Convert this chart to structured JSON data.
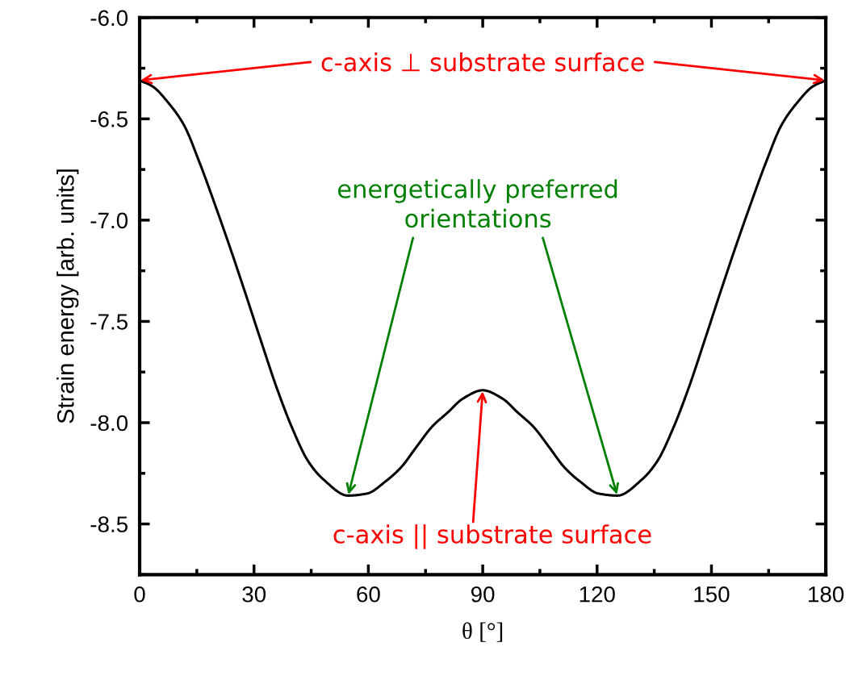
{
  "chart_data": {
    "type": "line",
    "xlabel": "θ [°]",
    "ylabel": "Strain energy [arb. units]",
    "x": [
      0,
      3.4,
      7.5,
      11.6,
      15.7,
      19.7,
      23.8,
      27.9,
      31.9,
      36.0,
      40.1,
      44.2,
      48.2,
      54.7,
      59.6,
      64.5,
      68.6,
      72.6,
      76.7,
      80.8,
      84.9,
      90,
      95.1,
      99.2,
      103.3,
      107.4,
      111.4,
      115.5,
      120.4,
      125.3,
      131.8,
      135.8,
      139.9,
      144.0,
      148.1,
      152.1,
      156.2,
      160.3,
      164.3,
      168.4,
      172.5,
      176.6,
      180
    ],
    "series": [
      {
        "color": "#000000",
        "values": [
          -6.31,
          -6.34,
          -6.42,
          -6.53,
          -6.715,
          -6.92,
          -7.14,
          -7.37,
          -7.6,
          -7.83,
          -8.03,
          -8.19,
          -8.28,
          -8.36,
          -8.35,
          -8.29,
          -8.22,
          -8.12,
          -8.02,
          -7.95,
          -7.88,
          -7.84,
          -7.88,
          -7.95,
          -8.02,
          -8.12,
          -8.22,
          -8.29,
          -8.35,
          -8.36,
          -8.28,
          -8.19,
          -8.03,
          -7.83,
          -7.6,
          -7.37,
          -7.14,
          -6.92,
          -6.715,
          -6.53,
          -6.42,
          -6.34,
          -6.31
        ]
      }
    ],
    "xlim": [
      0,
      180
    ],
    "xticks": [
      0,
      30,
      60,
      90,
      120,
      150,
      180
    ],
    "ylim": [
      -8.75,
      -6.0
    ],
    "yticks": [
      -8.5,
      {
        "value": -8,
        "label": "-8.0"
      },
      -7.5,
      {
        "value": -7,
        "label": "-7.0"
      },
      -6.5,
      {
        "value": -6,
        "label": "-6.0"
      }
    ],
    "marker": "none",
    "line_style": "solid",
    "grid": false,
    "legend": false,
    "annotations": [
      {
        "text": "c-axis ⊥ substrate surface",
        "x": 0,
        "y": -6.31
      },
      {
        "text": "energetically preferred\norientations",
        "x": 54.7,
        "y": -8.36
      },
      {
        "text": "c-axis || substrate surface",
        "x": 90,
        "y": -7.84
      }
    ]
  }
}
